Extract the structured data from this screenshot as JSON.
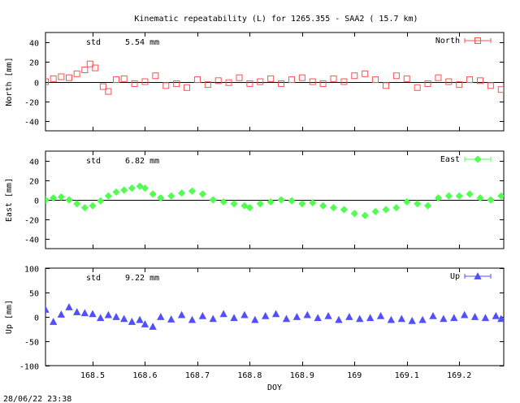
{
  "title": "Kinematic repeatability (L) for 1265.355 - SAA2  ( 15.7 km)",
  "timestamp": "28/06/22 23:38",
  "chart_data": [
    {
      "type": "scatter",
      "panel": "north",
      "ylabel": "North [mm]",
      "legend": "North",
      "legend_position": "top-right",
      "color": "#ff5050",
      "marker": "square",
      "std_label": "std",
      "std_value": "5.54 mm",
      "ylim": [
        -50,
        50
      ],
      "yticks": [
        -40,
        -20,
        0,
        20,
        40
      ],
      "xlim": [
        168.41,
        169.285
      ],
      "grid": false,
      "zero_line": true,
      "x": [
        168.41,
        168.425,
        168.44,
        168.455,
        168.47,
        168.485,
        168.495,
        168.505,
        168.52,
        168.53,
        168.545,
        168.56,
        168.58,
        168.6,
        168.62,
        168.64,
        168.66,
        168.68,
        168.7,
        168.72,
        168.74,
        168.76,
        168.78,
        168.8,
        168.82,
        168.84,
        168.86,
        168.88,
        168.9,
        168.92,
        168.94,
        168.96,
        168.98,
        169.0,
        169.02,
        169.04,
        169.06,
        169.08,
        169.1,
        169.12,
        169.14,
        169.16,
        169.18,
        169.2,
        169.22,
        169.24,
        169.26,
        169.28
      ],
      "y": [
        0,
        3,
        5,
        4,
        8,
        12,
        18,
        14,
        -5,
        -10,
        2,
        3,
        -2,
        0,
        6,
        -4,
        -2,
        -6,
        2,
        -3,
        1,
        -1,
        4,
        -2,
        0,
        3,
        -2,
        2,
        4,
        0,
        -2,
        3,
        0,
        6,
        8,
        2,
        -4,
        6,
        3,
        -6,
        -2,
        4,
        0,
        -3,
        2,
        1,
        -4,
        -8
      ]
    },
    {
      "type": "scatter",
      "panel": "east",
      "ylabel": "East [mm]",
      "legend": "East",
      "legend_position": "top-right",
      "color": "#50ff50",
      "marker": "diamond",
      "std_label": "std",
      "std_value": "6.82 mm",
      "ylim": [
        -50,
        50
      ],
      "yticks": [
        -40,
        -20,
        0,
        20,
        40
      ],
      "xlim": [
        168.41,
        169.285
      ],
      "grid": false,
      "zero_line": true,
      "x": [
        168.41,
        168.425,
        168.44,
        168.455,
        168.47,
        168.485,
        168.5,
        168.515,
        168.53,
        168.545,
        168.56,
        168.575,
        168.59,
        168.6,
        168.615,
        168.63,
        168.65,
        168.67,
        168.69,
        168.71,
        168.73,
        168.75,
        168.77,
        168.79,
        168.8,
        168.82,
        168.84,
        168.86,
        168.88,
        168.9,
        168.92,
        168.94,
        168.96,
        168.98,
        169.0,
        169.02,
        169.04,
        169.06,
        169.08,
        169.1,
        169.12,
        169.14,
        169.16,
        169.18,
        169.2,
        169.22,
        169.24,
        169.26,
        169.28
      ],
      "y": [
        0,
        2,
        3,
        0,
        -4,
        -8,
        -6,
        -1,
        4,
        8,
        10,
        12,
        14,
        12,
        6,
        2,
        4,
        7,
        9,
        6,
        0,
        -2,
        -4,
        -6,
        -8,
        -4,
        -2,
        0,
        -1,
        -4,
        -3,
        -6,
        -8,
        -10,
        -14,
        -16,
        -12,
        -10,
        -8,
        -2,
        -4,
        -6,
        2,
        4,
        4,
        6,
        2,
        0,
        4
      ]
    },
    {
      "type": "scatter",
      "panel": "up",
      "ylabel": "Up [mm]",
      "legend": "Up",
      "legend_position": "top-right",
      "color": "#5050ff",
      "marker": "triangle",
      "std_label": "std",
      "std_value": "9.22 mm",
      "ylim": [
        -100,
        100
      ],
      "yticks": [
        -100,
        -50,
        0,
        50,
        100
      ],
      "xlim": [
        168.41,
        169.285
      ],
      "grid": false,
      "zero_line": false,
      "xlabel": "DOY",
      "xticks": [
        "168.5",
        "168.6",
        "168.7",
        "168.8",
        "168.9",
        "169",
        "169.1",
        "169.2"
      ],
      "x": [
        168.41,
        168.425,
        168.44,
        168.455,
        168.47,
        168.485,
        168.5,
        168.515,
        168.53,
        168.545,
        168.56,
        168.575,
        168.59,
        168.6,
        168.615,
        168.63,
        168.65,
        168.67,
        168.69,
        168.71,
        168.73,
        168.75,
        168.77,
        168.79,
        168.81,
        168.83,
        168.85,
        168.87,
        168.89,
        168.91,
        168.93,
        168.95,
        168.97,
        168.99,
        169.01,
        169.03,
        169.05,
        169.07,
        169.09,
        169.11,
        169.13,
        169.15,
        169.17,
        169.19,
        169.21,
        169.23,
        169.25,
        169.27,
        169.28
      ],
      "y": [
        15,
        -10,
        5,
        20,
        10,
        8,
        6,
        -2,
        4,
        0,
        -4,
        -10,
        -6,
        -15,
        -20,
        0,
        -5,
        4,
        -6,
        2,
        -4,
        6,
        -2,
        4,
        -6,
        2,
        6,
        -4,
        0,
        4,
        -2,
        2,
        -6,
        0,
        -4,
        -2,
        2,
        -6,
        -4,
        -8,
        -6,
        2,
        -4,
        -2,
        4,
        0,
        -2,
        2,
        -4
      ]
    }
  ]
}
